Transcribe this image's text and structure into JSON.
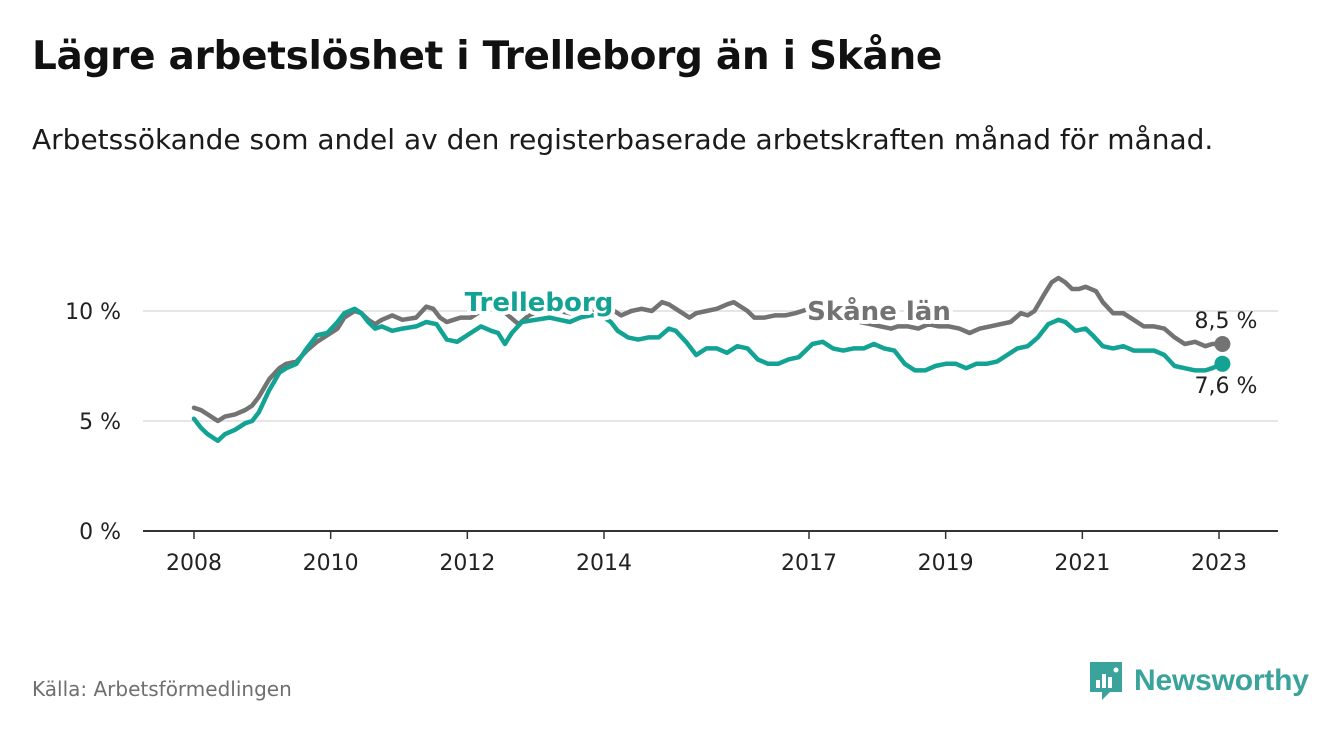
{
  "header": {
    "title": "Lägre arbetslöshet i Trelleborg än i Skåne",
    "subtitle": "Arbetssökande som andel av den registerbaserade arbetskraften månad för månad."
  },
  "footer": {
    "source": "Källa: Arbetsförmedlingen",
    "brand": "Newsworthy"
  },
  "colors": {
    "trelleborg": "#13a394",
    "skane": "#737373",
    "grid": "#dddddd",
    "axis": "#333333",
    "brand": "#3aa39b"
  },
  "icons": {
    "brand_logo": "chart-bubble-icon"
  },
  "chart_data": {
    "type": "line",
    "title": "Lägre arbetslöshet i Trelleborg än i Skåne",
    "xlabel": "",
    "ylabel": "",
    "ylim": [
      0,
      12
    ],
    "xlim": [
      2007.6,
      2024.1
    ],
    "y_ticks": [
      {
        "value": 0,
        "label": "0 %"
      },
      {
        "value": 5,
        "label": "5 %"
      },
      {
        "value": 10,
        "label": "10 %"
      }
    ],
    "x_ticks": [
      {
        "value": 2008,
        "label": "2008"
      },
      {
        "value": 2010,
        "label": "2010"
      },
      {
        "value": 2012,
        "label": "2012"
      },
      {
        "value": 2014,
        "label": "2014"
      },
      {
        "value": 2017,
        "label": "2017"
      },
      {
        "value": 2019,
        "label": "2019"
      },
      {
        "value": 2021,
        "label": "2021"
      },
      {
        "value": 2023,
        "label": "2023"
      }
    ],
    "grid": true,
    "series": [
      {
        "name": "Skåne län",
        "label": "Skåne län",
        "color": "#737373",
        "end_label": "8,5 %",
        "points": [
          [
            2008.0,
            5.6
          ],
          [
            2008.1,
            5.5
          ],
          [
            2008.2,
            5.3
          ],
          [
            2008.3,
            5.1
          ],
          [
            2008.35,
            5.0
          ],
          [
            2008.45,
            5.2
          ],
          [
            2008.6,
            5.3
          ],
          [
            2008.75,
            5.5
          ],
          [
            2008.85,
            5.7
          ],
          [
            2008.95,
            6.1
          ],
          [
            2009.1,
            6.9
          ],
          [
            2009.25,
            7.4
          ],
          [
            2009.35,
            7.6
          ],
          [
            2009.5,
            7.7
          ],
          [
            2009.65,
            8.2
          ],
          [
            2009.8,
            8.6
          ],
          [
            2009.95,
            8.9
          ],
          [
            2010.1,
            9.2
          ],
          [
            2010.2,
            9.7
          ],
          [
            2010.35,
            10.0
          ],
          [
            2010.45,
            9.9
          ],
          [
            2010.55,
            9.6
          ],
          [
            2010.65,
            9.4
          ],
          [
            2010.75,
            9.6
          ],
          [
            2010.9,
            9.8
          ],
          [
            2011.05,
            9.6
          ],
          [
            2011.25,
            9.7
          ],
          [
            2011.4,
            10.2
          ],
          [
            2011.5,
            10.1
          ],
          [
            2011.6,
            9.7
          ],
          [
            2011.7,
            9.5
          ],
          [
            2011.8,
            9.6
          ],
          [
            2011.9,
            9.7
          ],
          [
            2012.05,
            9.7
          ],
          [
            2012.2,
            10.0
          ],
          [
            2012.3,
            10.3
          ],
          [
            2012.45,
            10.2
          ],
          [
            2012.6,
            9.8
          ],
          [
            2012.75,
            9.4
          ],
          [
            2012.9,
            9.8
          ],
          [
            2013.05,
            10.0
          ],
          [
            2013.2,
            10.1
          ],
          [
            2013.35,
            10.0
          ],
          [
            2013.5,
            9.9
          ],
          [
            2013.65,
            10.0
          ],
          [
            2013.8,
            10.1
          ],
          [
            2013.95,
            10.0
          ],
          [
            2014.1,
            10.1
          ],
          [
            2014.25,
            9.8
          ],
          [
            2014.4,
            10.0
          ],
          [
            2014.55,
            10.1
          ],
          [
            2014.7,
            10.0
          ],
          [
            2014.85,
            10.4
          ],
          [
            2014.95,
            10.3
          ],
          [
            2015.05,
            10.1
          ],
          [
            2015.15,
            9.9
          ],
          [
            2015.25,
            9.7
          ],
          [
            2015.35,
            9.9
          ],
          [
            2015.5,
            10.0
          ],
          [
            2015.65,
            10.1
          ],
          [
            2015.8,
            10.3
          ],
          [
            2015.9,
            10.4
          ],
          [
            2016.0,
            10.2
          ],
          [
            2016.1,
            10.0
          ],
          [
            2016.2,
            9.7
          ],
          [
            2016.35,
            9.7
          ],
          [
            2016.5,
            9.8
          ],
          [
            2016.65,
            9.8
          ],
          [
            2016.8,
            9.9
          ],
          [
            2016.9,
            10.0
          ],
          [
            2017.0,
            10.1
          ],
          [
            2017.15,
            10.0
          ],
          [
            2017.3,
            9.8
          ],
          [
            2017.45,
            9.7
          ],
          [
            2017.6,
            9.6
          ],
          [
            2017.75,
            9.5
          ],
          [
            2017.9,
            9.4
          ],
          [
            2018.05,
            9.3
          ],
          [
            2018.2,
            9.2
          ],
          [
            2018.3,
            9.3
          ],
          [
            2018.45,
            9.3
          ],
          [
            2018.6,
            9.2
          ],
          [
            2018.75,
            9.4
          ],
          [
            2018.9,
            9.3
          ],
          [
            2019.05,
            9.3
          ],
          [
            2019.2,
            9.2
          ],
          [
            2019.35,
            9.0
          ],
          [
            2019.5,
            9.2
          ],
          [
            2019.65,
            9.3
          ],
          [
            2019.8,
            9.4
          ],
          [
            2019.95,
            9.5
          ],
          [
            2020.1,
            9.9
          ],
          [
            2020.2,
            9.8
          ],
          [
            2020.3,
            10.0
          ],
          [
            2020.45,
            10.8
          ],
          [
            2020.55,
            11.3
          ],
          [
            2020.65,
            11.5
          ],
          [
            2020.75,
            11.3
          ],
          [
            2020.85,
            11.0
          ],
          [
            2020.95,
            11.0
          ],
          [
            2021.05,
            11.1
          ],
          [
            2021.2,
            10.9
          ],
          [
            2021.3,
            10.4
          ],
          [
            2021.45,
            9.9
          ],
          [
            2021.6,
            9.9
          ],
          [
            2021.75,
            9.6
          ],
          [
            2021.9,
            9.3
          ],
          [
            2022.05,
            9.3
          ],
          [
            2022.2,
            9.2
          ],
          [
            2022.35,
            8.8
          ],
          [
            2022.5,
            8.5
          ],
          [
            2022.65,
            8.6
          ],
          [
            2022.8,
            8.4
          ],
          [
            2022.9,
            8.5
          ],
          [
            2023.05,
            8.5
          ]
        ]
      },
      {
        "name": "Trelleborg",
        "label": "Trelleborg",
        "color": "#13a394",
        "end_label": "7,6 %",
        "points": [
          [
            2008.0,
            5.1
          ],
          [
            2008.1,
            4.7
          ],
          [
            2008.2,
            4.4
          ],
          [
            2008.3,
            4.2
          ],
          [
            2008.35,
            4.1
          ],
          [
            2008.45,
            4.4
          ],
          [
            2008.6,
            4.6
          ],
          [
            2008.75,
            4.9
          ],
          [
            2008.85,
            5.0
          ],
          [
            2008.95,
            5.4
          ],
          [
            2009.1,
            6.4
          ],
          [
            2009.25,
            7.2
          ],
          [
            2009.35,
            7.4
          ],
          [
            2009.5,
            7.6
          ],
          [
            2009.65,
            8.3
          ],
          [
            2009.8,
            8.9
          ],
          [
            2009.95,
            9.0
          ],
          [
            2010.1,
            9.5
          ],
          [
            2010.2,
            9.9
          ],
          [
            2010.35,
            10.1
          ],
          [
            2010.45,
            9.9
          ],
          [
            2010.55,
            9.5
          ],
          [
            2010.65,
            9.2
          ],
          [
            2010.75,
            9.3
          ],
          [
            2010.9,
            9.1
          ],
          [
            2011.05,
            9.2
          ],
          [
            2011.25,
            9.3
          ],
          [
            2011.4,
            9.5
          ],
          [
            2011.55,
            9.4
          ],
          [
            2011.7,
            8.7
          ],
          [
            2011.85,
            8.6
          ],
          [
            2012.05,
            9.0
          ],
          [
            2012.2,
            9.3
          ],
          [
            2012.35,
            9.1
          ],
          [
            2012.45,
            9.0
          ],
          [
            2012.55,
            8.5
          ],
          [
            2012.65,
            9.0
          ],
          [
            2012.8,
            9.5
          ],
          [
            2013.0,
            9.6
          ],
          [
            2013.2,
            9.7
          ],
          [
            2013.35,
            9.6
          ],
          [
            2013.5,
            9.5
          ],
          [
            2013.65,
            9.7
          ],
          [
            2013.8,
            9.8
          ],
          [
            2013.95,
            9.8
          ],
          [
            2014.1,
            9.5
          ],
          [
            2014.2,
            9.1
          ],
          [
            2014.35,
            8.8
          ],
          [
            2014.5,
            8.7
          ],
          [
            2014.65,
            8.8
          ],
          [
            2014.8,
            8.8
          ],
          [
            2014.95,
            9.2
          ],
          [
            2015.05,
            9.1
          ],
          [
            2015.2,
            8.6
          ],
          [
            2015.35,
            8.0
          ],
          [
            2015.5,
            8.3
          ],
          [
            2015.65,
            8.3
          ],
          [
            2015.8,
            8.1
          ],
          [
            2015.95,
            8.4
          ],
          [
            2016.1,
            8.3
          ],
          [
            2016.25,
            7.8
          ],
          [
            2016.4,
            7.6
          ],
          [
            2016.55,
            7.6
          ],
          [
            2016.7,
            7.8
          ],
          [
            2016.85,
            7.9
          ],
          [
            2016.95,
            8.2
          ],
          [
            2017.05,
            8.5
          ],
          [
            2017.2,
            8.6
          ],
          [
            2017.35,
            8.3
          ],
          [
            2017.5,
            8.2
          ],
          [
            2017.65,
            8.3
          ],
          [
            2017.8,
            8.3
          ],
          [
            2017.95,
            8.5
          ],
          [
            2018.1,
            8.3
          ],
          [
            2018.25,
            8.2
          ],
          [
            2018.4,
            7.6
          ],
          [
            2018.55,
            7.3
          ],
          [
            2018.7,
            7.3
          ],
          [
            2018.85,
            7.5
          ],
          [
            2019.0,
            7.6
          ],
          [
            2019.15,
            7.6
          ],
          [
            2019.3,
            7.4
          ],
          [
            2019.45,
            7.6
          ],
          [
            2019.6,
            7.6
          ],
          [
            2019.75,
            7.7
          ],
          [
            2019.9,
            8.0
          ],
          [
            2020.05,
            8.3
          ],
          [
            2020.2,
            8.4
          ],
          [
            2020.35,
            8.8
          ],
          [
            2020.5,
            9.4
          ],
          [
            2020.65,
            9.6
          ],
          [
            2020.75,
            9.5
          ],
          [
            2020.9,
            9.1
          ],
          [
            2021.05,
            9.2
          ],
          [
            2021.15,
            8.9
          ],
          [
            2021.3,
            8.4
          ],
          [
            2021.45,
            8.3
          ],
          [
            2021.6,
            8.4
          ],
          [
            2021.75,
            8.2
          ],
          [
            2021.9,
            8.2
          ],
          [
            2022.05,
            8.2
          ],
          [
            2022.2,
            8.0
          ],
          [
            2022.35,
            7.5
          ],
          [
            2022.5,
            7.4
          ],
          [
            2022.65,
            7.3
          ],
          [
            2022.8,
            7.3
          ],
          [
            2022.9,
            7.4
          ],
          [
            2023.05,
            7.6
          ]
        ]
      }
    ]
  }
}
